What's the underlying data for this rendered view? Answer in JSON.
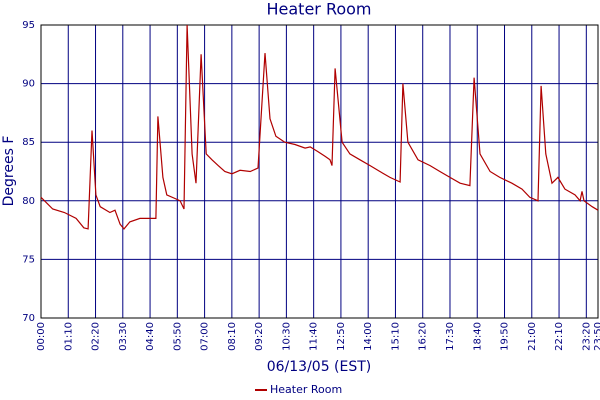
{
  "chart_data": {
    "type": "line",
    "title": "Heater Room",
    "y_label": "Degrees F",
    "x_label": "06/13/05 (EST)",
    "x": [
      "00:00",
      "00:30",
      "01:00",
      "01:30",
      "01:50",
      "02:01",
      "02:11",
      "02:21",
      "02:32",
      "02:57",
      "03:10",
      "03:23",
      "03:33",
      "03:48",
      "04:14",
      "04:40",
      "04:55",
      "05:00",
      "05:13",
      "05:23",
      "05:44",
      "05:57",
      "06:07",
      "06:15",
      "06:28",
      "06:38",
      "06:51",
      "07:04",
      "07:19",
      "07:35",
      "07:52",
      "08:10",
      "08:31",
      "08:57",
      "09:17",
      "09:35",
      "09:48",
      "10:03",
      "10:26",
      "10:52",
      "11:18",
      "11:31",
      "11:51",
      "12:09",
      "12:22",
      "12:27",
      "12:35",
      "12:53",
      "13:13",
      "13:39",
      "14:05",
      "14:30",
      "14:56",
      "15:22",
      "15:29",
      "15:42",
      "16:08",
      "16:39",
      "17:04",
      "17:30",
      "17:56",
      "18:21",
      "18:32",
      "18:47",
      "19:13",
      "19:38",
      "20:09",
      "20:35",
      "20:55",
      "21:16",
      "21:24",
      "21:36",
      "21:52",
      "22:07",
      "22:25",
      "22:51",
      "23:04",
      "23:09",
      "23:14",
      "23:35",
      "23:50"
    ],
    "series": [
      {
        "name": "Heater Room",
        "color": "#b00000",
        "values": [
          80.3,
          79.3,
          79,
          78.5,
          77.7,
          77.6,
          86,
          80.5,
          79.5,
          79,
          79.2,
          78,
          77.6,
          78.2,
          78.5,
          78.5,
          78.5,
          87.2,
          82,
          80.5,
          80.2,
          80,
          79.3,
          95,
          84,
          81.5,
          92.5,
          84,
          83.5,
          83,
          82.5,
          82.3,
          82.6,
          82.5,
          82.8,
          92.6,
          87,
          85.5,
          85,
          84.8,
          84.5,
          84.6,
          84.2,
          83.8,
          83.5,
          83,
          91.3,
          85,
          84,
          83.5,
          83,
          82.5,
          82,
          81.6,
          90,
          85,
          83.5,
          83,
          82.5,
          82,
          81.5,
          81.3,
          90.5,
          84,
          82.5,
          82,
          81.5,
          81,
          80.3,
          80,
          89.8,
          84,
          81.5,
          82,
          81,
          80.5,
          80,
          80.8,
          80,
          79.5,
          79.2
        ]
      }
    ],
    "xlim": [
      "00:00",
      "23:50"
    ],
    "xticks": [
      "00:00",
      "01:10",
      "02:20",
      "03:30",
      "04:40",
      "05:50",
      "07:00",
      "08:10",
      "09:20",
      "10:30",
      "11:40",
      "12:50",
      "14:00",
      "15:10",
      "16:20",
      "17:30",
      "18:40",
      "19:50",
      "21:00",
      "22:10",
      "23:20",
      "23:50"
    ],
    "ylim": [
      70,
      95
    ],
    "yticks": [
      70,
      75,
      80,
      85,
      90,
      95
    ],
    "grid": true,
    "legend": "bottom"
  }
}
